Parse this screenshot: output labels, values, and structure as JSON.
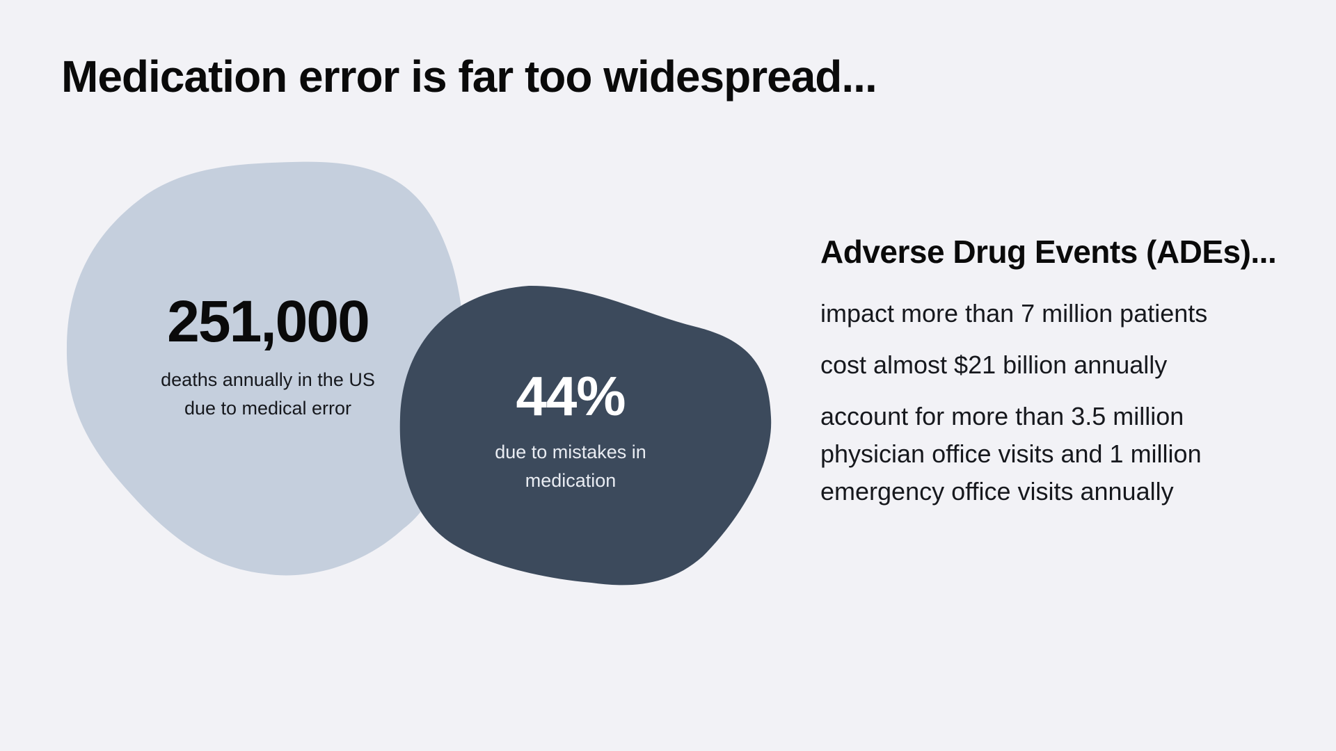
{
  "slide": {
    "title": "Medication error is far too widespread...",
    "background_color": "#f2f2f6"
  },
  "stats": [
    {
      "value": "251,000",
      "caption_line1": "deaths annually in the US",
      "caption_line2": "due to medical error",
      "blob_color": "#c5cfdd"
    },
    {
      "value": "44%",
      "caption_line1": "due to mistakes in",
      "caption_line2": "medication",
      "blob_color": "#3c4a5c"
    }
  ],
  "ade": {
    "heading": "Adverse Drug Events (ADEs)...",
    "items": [
      "impact more than 7 million patients",
      "cost almost $21 billion annually",
      "account for more than 3.5 million physician office visits and 1 million emergency office visits annually"
    ]
  }
}
